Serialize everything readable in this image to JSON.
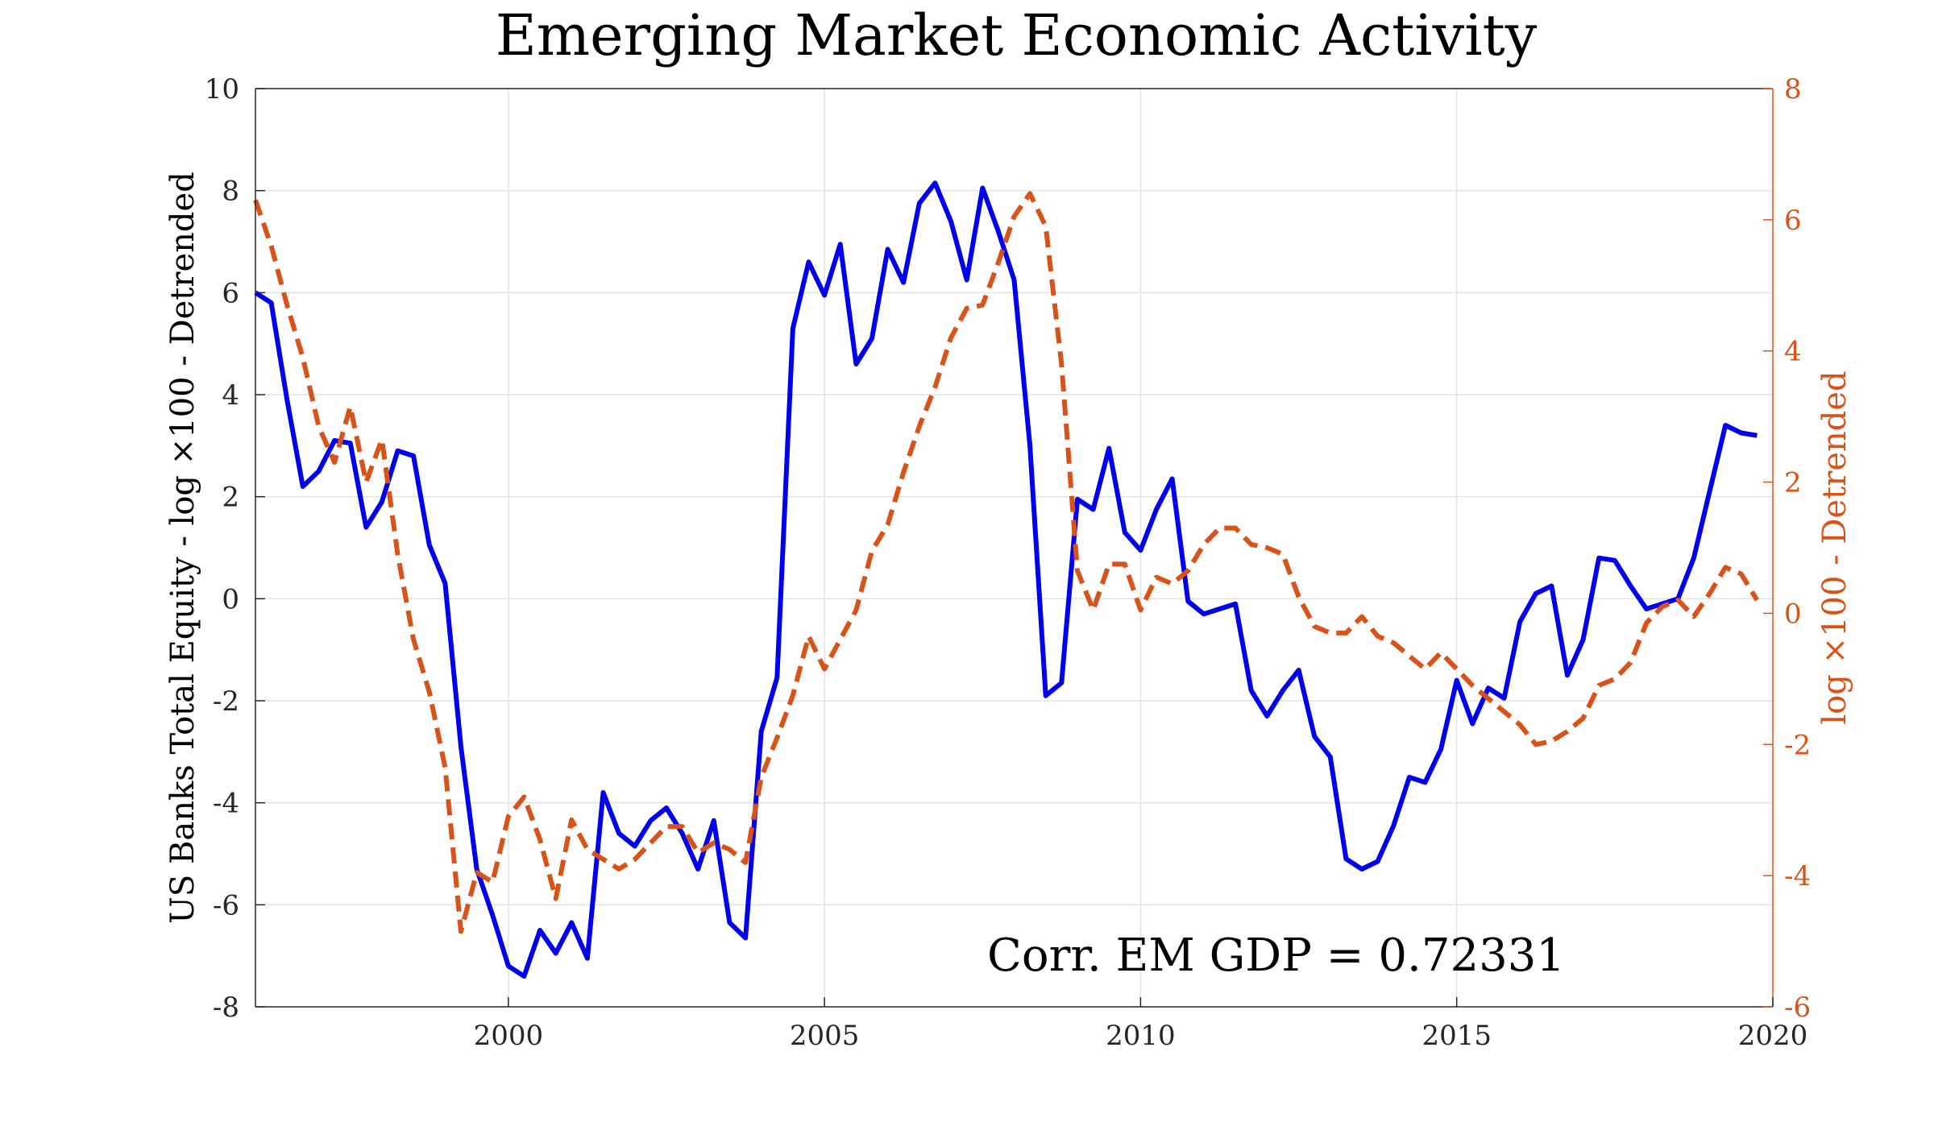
{
  "chart_data": {
    "type": "line",
    "title": "Emerging Market Economic Activity",
    "annotation": "Corr. EM GDP = 0.72331",
    "x_range": [
      1996,
      2020
    ],
    "x_ticks": [
      2000,
      2005,
      2010,
      2015,
      2020
    ],
    "y_left": {
      "label": "US Banks Total Equity - log ×100 - Detrended",
      "range": [
        -8,
        10
      ],
      "ticks": [
        -8,
        -6,
        -4,
        -2,
        0,
        2,
        4,
        6,
        8,
        10
      ],
      "color": "#0000ee"
    },
    "y_right": {
      "label": "log ×100 - Detrended",
      "range": [
        -6,
        8
      ],
      "ticks": [
        -6,
        -4,
        -2,
        0,
        2,
        4,
        6,
        8
      ],
      "color": "#d95319"
    },
    "grid": true,
    "series": [
      {
        "name": "US Banks Total Equity",
        "axis": "left",
        "color": "#0000ee",
        "style": "solid",
        "x": [
          1996.0,
          1996.25,
          1996.5,
          1996.75,
          1997.0,
          1997.25,
          1997.5,
          1997.75,
          1998.0,
          1998.25,
          1998.5,
          1998.75,
          1999.0,
          1999.25,
          1999.5,
          1999.75,
          2000.0,
          2000.25,
          2000.5,
          2000.75,
          2001.0,
          2001.25,
          2001.5,
          2001.75,
          2002.0,
          2002.25,
          2002.5,
          2002.75,
          2003.0,
          2003.25,
          2003.5,
          2003.75,
          2004.0,
          2004.25,
          2004.5,
          2004.75,
          2005.0,
          2005.25,
          2005.5,
          2005.75,
          2006.0,
          2006.25,
          2006.5,
          2006.75,
          2007.0,
          2007.25,
          2007.5,
          2007.75,
          2008.0,
          2008.25,
          2008.5,
          2008.75,
          2009.0,
          2009.25,
          2009.5,
          2009.75,
          2010.0,
          2010.25,
          2010.5,
          2010.75,
          2011.0,
          2011.25,
          2011.5,
          2011.75,
          2012.0,
          2012.25,
          2012.5,
          2012.75,
          2013.0,
          2013.25,
          2013.5,
          2013.75,
          2014.0,
          2014.25,
          2014.5,
          2014.75,
          2015.0,
          2015.25,
          2015.5,
          2015.75,
          2016.0,
          2016.25,
          2016.5,
          2016.75,
          2017.0,
          2017.25,
          2017.5,
          2017.75,
          2018.0,
          2018.25,
          2018.5,
          2018.75,
          2019.0,
          2019.25,
          2019.5,
          2019.75
        ],
        "values": [
          6.0,
          5.8,
          3.9,
          2.2,
          2.5,
          3.1,
          3.05,
          1.4,
          1.9,
          2.9,
          2.8,
          1.05,
          0.3,
          -2.9,
          -5.3,
          -6.2,
          -7.2,
          -7.4,
          -6.5,
          -6.95,
          -6.35,
          -7.05,
          -3.8,
          -4.6,
          -4.85,
          -4.35,
          -4.1,
          -4.6,
          -5.3,
          -4.35,
          -6.35,
          -6.65,
          -2.6,
          -1.55,
          5.3,
          6.6,
          5.95,
          6.95,
          4.6,
          5.1,
          6.85,
          6.2,
          7.75,
          8.15,
          7.4,
          6.25,
          8.05,
          7.2,
          6.25,
          3.0,
          -1.9,
          -1.65,
          1.95,
          1.75,
          2.95,
          1.3,
          0.95,
          1.75,
          2.35,
          -0.05,
          -0.3,
          -0.2,
          -0.1,
          -1.8,
          -2.3,
          -1.8,
          -1.4,
          -2.7,
          -3.1,
          -5.1,
          -5.3,
          -5.15,
          -4.45,
          -3.5,
          -3.6,
          -2.95,
          -1.6,
          -2.45,
          -1.75,
          -1.95,
          -0.45,
          0.1,
          0.25,
          -1.5,
          -0.8,
          0.8,
          0.75,
          0.25,
          -0.2,
          -0.1,
          0.0,
          0.8,
          2.1,
          3.4,
          3.25,
          3.2
        ]
      },
      {
        "name": "EM GDP",
        "axis": "right",
        "color": "#d95319",
        "style": "dashed",
        "x": [
          1996.0,
          1996.25,
          1996.5,
          1996.75,
          1997.0,
          1997.25,
          1997.5,
          1997.75,
          1998.0,
          1998.25,
          1998.5,
          1998.75,
          1999.0,
          1999.25,
          1999.5,
          1999.75,
          2000.0,
          2000.25,
          2000.5,
          2000.75,
          2001.0,
          2001.25,
          2001.5,
          2001.75,
          2002.0,
          2002.25,
          2002.5,
          2002.75,
          2003.0,
          2003.25,
          2003.5,
          2003.75,
          2004.0,
          2004.25,
          2004.5,
          2004.75,
          2005.0,
          2005.25,
          2005.5,
          2005.75,
          2006.0,
          2006.25,
          2006.5,
          2006.75,
          2007.0,
          2007.25,
          2007.5,
          2007.75,
          2008.0,
          2008.25,
          2008.5,
          2008.75,
          2009.0,
          2009.25,
          2009.5,
          2009.75,
          2010.0,
          2010.25,
          2010.5,
          2010.75,
          2011.0,
          2011.25,
          2011.5,
          2011.75,
          2012.0,
          2012.25,
          2012.5,
          2012.75,
          2013.0,
          2013.25,
          2013.5,
          2013.75,
          2014.0,
          2014.25,
          2014.5,
          2014.75,
          2015.0,
          2015.25,
          2015.5,
          2015.75,
          2016.0,
          2016.25,
          2016.5,
          2016.75,
          2017.0,
          2017.25,
          2017.5,
          2017.75,
          2018.0,
          2018.25,
          2018.5,
          2018.75,
          2019.0,
          2019.25,
          2019.5,
          2019.75
        ],
        "values": [
          6.3,
          5.6,
          4.7,
          3.9,
          2.85,
          2.3,
          3.15,
          2.0,
          2.65,
          0.9,
          -0.4,
          -1.2,
          -2.35,
          -4.85,
          -3.95,
          -4.1,
          -3.1,
          -2.8,
          -3.45,
          -4.35,
          -3.15,
          -3.6,
          -3.75,
          -3.9,
          -3.75,
          -3.5,
          -3.25,
          -3.25,
          -3.65,
          -3.5,
          -3.6,
          -3.8,
          -2.5,
          -1.9,
          -1.25,
          -0.35,
          -0.85,
          -0.4,
          0.05,
          0.95,
          1.35,
          2.15,
          2.85,
          3.45,
          4.2,
          4.65,
          4.7,
          5.35,
          6.05,
          6.4,
          5.9,
          3.8,
          0.65,
          0.05,
          0.75,
          0.75,
          0.05,
          0.55,
          0.45,
          0.65,
          1.05,
          1.3,
          1.3,
          1.05,
          1.0,
          0.9,
          0.25,
          -0.2,
          -0.3,
          -0.3,
          -0.05,
          -0.35,
          -0.45,
          -0.65,
          -0.85,
          -0.6,
          -0.85,
          -1.1,
          -1.3,
          -1.5,
          -1.7,
          -2.0,
          -1.95,
          -1.8,
          -1.6,
          -1.1,
          -1.0,
          -0.75,
          -0.15,
          0.1,
          0.2,
          -0.05,
          0.3,
          0.7,
          0.6,
          0.2
        ]
      }
    ]
  }
}
